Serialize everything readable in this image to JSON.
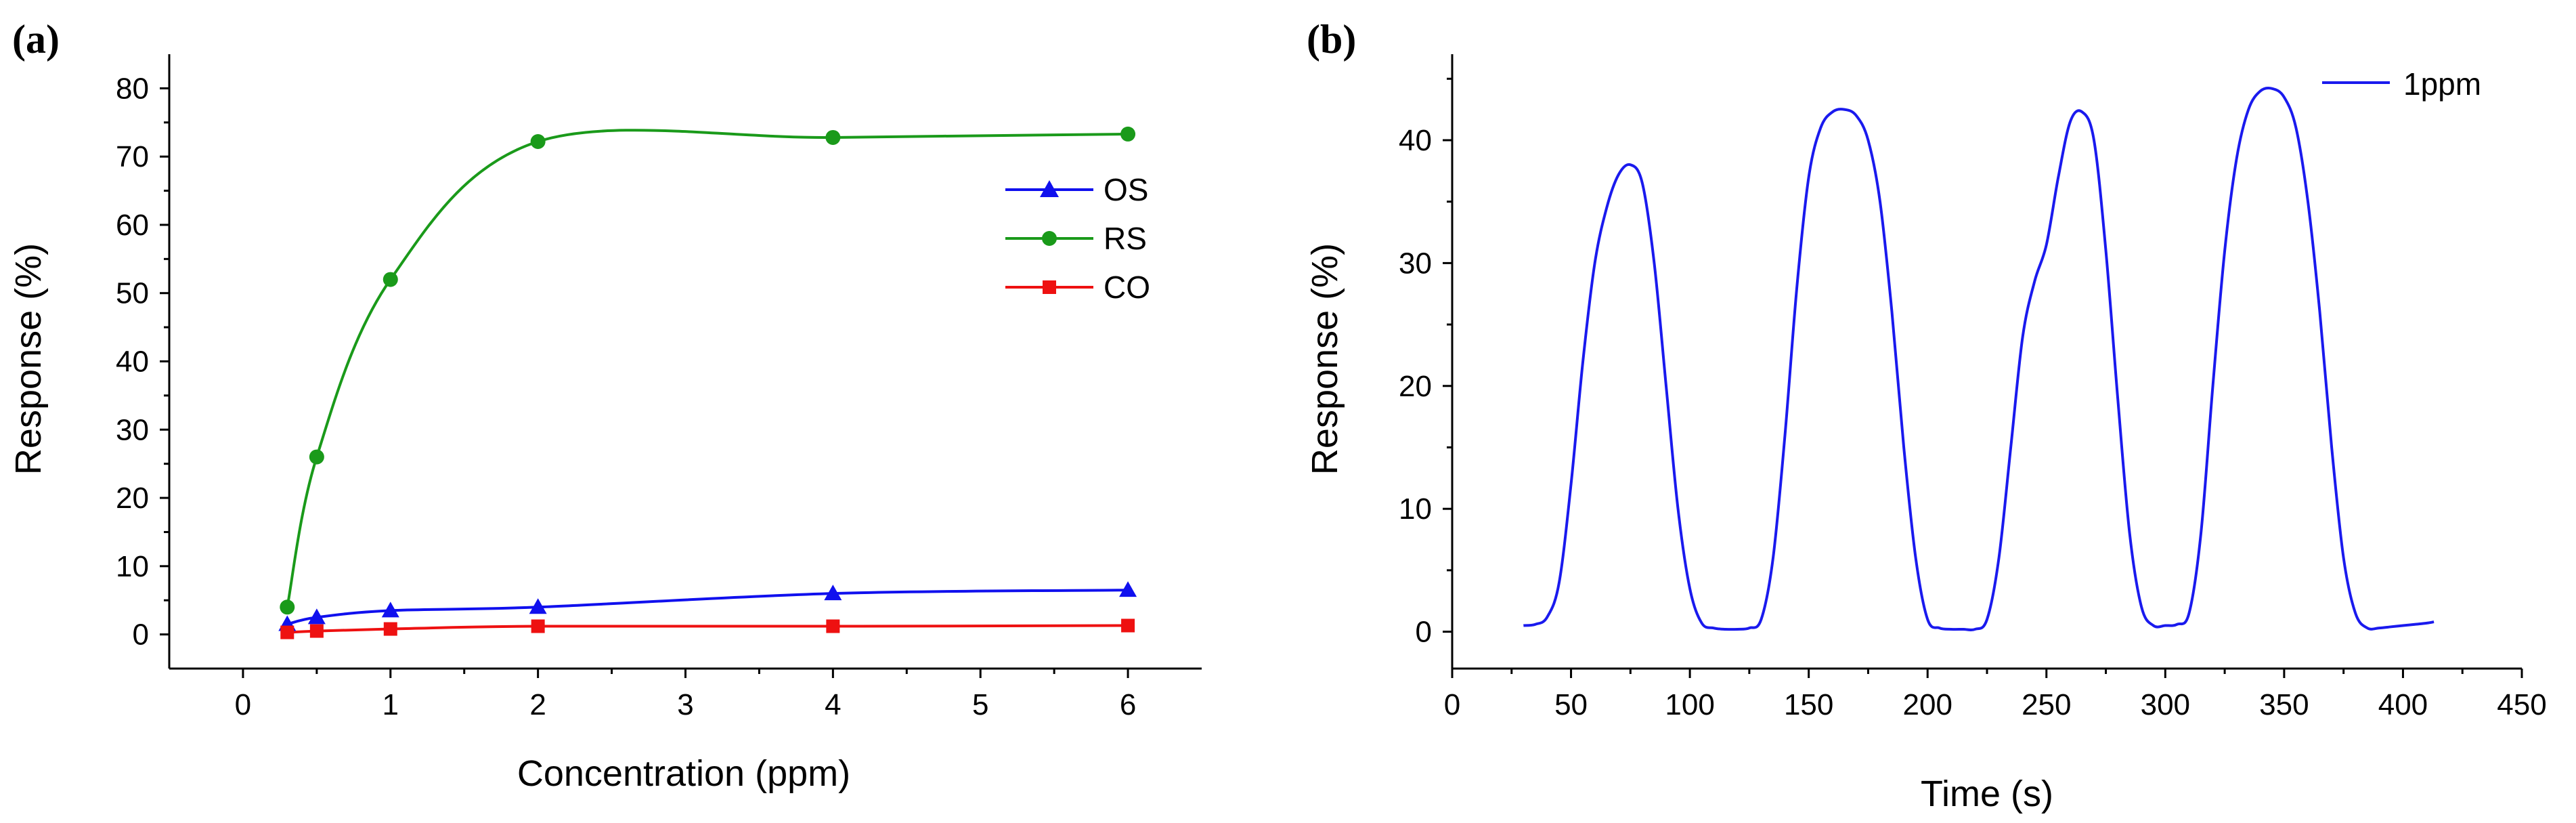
{
  "chart_data": [
    {
      "panel": "(a)",
      "type": "line",
      "xlabel": "Concentration (ppm)",
      "ylabel": "Response (%)",
      "xlim": [
        -0.5,
        6.5
      ],
      "ylim": [
        -5,
        85
      ],
      "xticks": [
        0,
        1,
        2,
        3,
        4,
        5,
        6
      ],
      "yticks": [
        0,
        10,
        20,
        30,
        40,
        50,
        60,
        70,
        80
      ],
      "grid": false,
      "legend_position": "right-middle",
      "x": [
        0.3,
        0.5,
        1,
        2,
        4,
        6
      ],
      "series": [
        {
          "name": "OS",
          "color": "#1010ee",
          "marker": "triangle",
          "values": [
            1.5,
            2.5,
            3.5,
            4.0,
            6.0,
            6.5
          ]
        },
        {
          "name": "RS",
          "color": "#1a9a1a",
          "marker": "circle",
          "values": [
            4.0,
            26.0,
            52.0,
            72.2,
            72.8,
            73.3
          ]
        },
        {
          "name": "CO",
          "color": "#ee1111",
          "marker": "square",
          "values": [
            0.3,
            0.5,
            0.8,
            1.2,
            1.2,
            1.3
          ]
        }
      ]
    },
    {
      "panel": "(b)",
      "type": "line",
      "xlabel": "Time (s)",
      "ylabel": "Response (%)",
      "xlim": [
        0,
        450
      ],
      "ylim": [
        -3,
        47
      ],
      "xticks": [
        0,
        50,
        100,
        150,
        200,
        250,
        300,
        350,
        400,
        450
      ],
      "yticks": [
        0,
        10,
        20,
        30,
        40
      ],
      "grid": false,
      "legend_position": "top-right",
      "series": [
        {
          "name": "1ppm",
          "color": "#1a1aee",
          "x": [
            30,
            35,
            40,
            45,
            50,
            55,
            60,
            65,
            70,
            75,
            80,
            85,
            90,
            95,
            100,
            105,
            110,
            115,
            120,
            125,
            130,
            135,
            140,
            145,
            150,
            155,
            160,
            165,
            170,
            175,
            180,
            185,
            190,
            195,
            200,
            205,
            210,
            215,
            220,
            225,
            230,
            235,
            240,
            245,
            250,
            255,
            260,
            265,
            270,
            275,
            280,
            285,
            290,
            295,
            300,
            305,
            310,
            315,
            320,
            325,
            330,
            335,
            340,
            345,
            350,
            355,
            360,
            365,
            370,
            375,
            380,
            385,
            390,
            395,
            400,
            405,
            410,
            413
          ],
          "y": [
            0.5,
            0.6,
            1.2,
            4.0,
            12.0,
            22.0,
            30.0,
            34.5,
            37.2,
            38.0,
            36.5,
            30.0,
            20.0,
            10.0,
            3.5,
            0.7,
            0.3,
            0.2,
            0.2,
            0.3,
            1.0,
            6.0,
            16.0,
            28.0,
            37.0,
            41.0,
            42.3,
            42.5,
            42.0,
            40.0,
            35.0,
            26.0,
            15.0,
            6.0,
            1.0,
            0.3,
            0.2,
            0.2,
            0.2,
            1.0,
            6.0,
            15.0,
            24.0,
            28.5,
            31.5,
            37.0,
            41.5,
            42.3,
            40.0,
            31.0,
            19.0,
            8.0,
            2.0,
            0.5,
            0.5,
            0.6,
            1.5,
            8.0,
            20.0,
            31.0,
            38.5,
            42.5,
            44.0,
            44.2,
            43.5,
            41.0,
            35.0,
            26.0,
            15.0,
            6.0,
            1.5,
            0.3,
            0.3,
            0.4,
            0.5,
            0.6,
            0.7,
            0.8
          ]
        }
      ]
    }
  ]
}
